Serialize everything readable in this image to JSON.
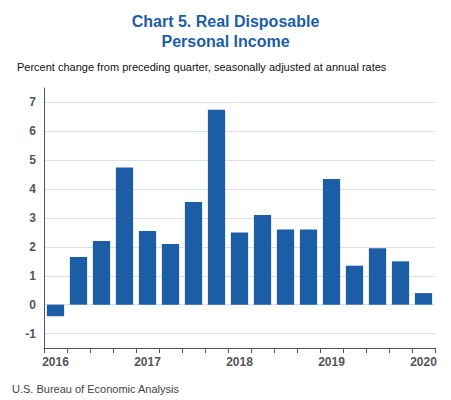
{
  "chart_data": {
    "type": "bar",
    "title": "Chart 5. Real Disposable\nPersonal Income",
    "subtitle": "Percent change from preceding quarter, seasonally adjusted at annual rates",
    "annotations": [
      "U.S. Bureau of Economic Analysis"
    ],
    "categories": [
      "2016",
      null,
      null,
      null,
      "2017",
      null,
      null,
      null,
      "2018",
      null,
      null,
      null,
      "2019",
      null,
      null,
      null,
      "2020"
    ],
    "values": [
      -0.4,
      1.65,
      2.2,
      4.75,
      2.55,
      2.1,
      3.55,
      6.75,
      2.5,
      3.1,
      2.6,
      2.6,
      4.35,
      1.35,
      1.95,
      1.5,
      0.4
    ],
    "color": "#1B5EA6",
    "ylim": [
      -1.5,
      7.5
    ],
    "yticks": [
      -1,
      0,
      1,
      2,
      3,
      4,
      5,
      6,
      7
    ],
    "grid": true
  }
}
